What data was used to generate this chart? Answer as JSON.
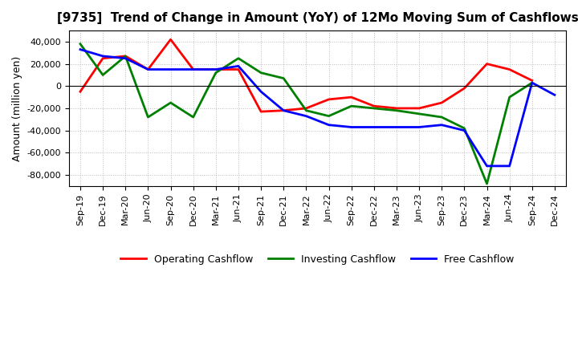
{
  "title": "[9735]  Trend of Change in Amount (YoY) of 12Mo Moving Sum of Cashflows",
  "ylabel": "Amount (million yen)",
  "x_labels": [
    "Sep-19",
    "Dec-19",
    "Mar-20",
    "Jun-20",
    "Sep-20",
    "Dec-20",
    "Mar-21",
    "Jun-21",
    "Sep-21",
    "Dec-21",
    "Mar-22",
    "Jun-22",
    "Sep-22",
    "Dec-22",
    "Mar-23",
    "Jun-23",
    "Sep-23",
    "Dec-23",
    "Mar-24",
    "Jun-24",
    "Sep-24",
    "Dec-24"
  ],
  "operating_cashflow": [
    -5000,
    25000,
    27000,
    15000,
    42000,
    15000,
    15000,
    15000,
    -23000,
    -22000,
    -20000,
    -12000,
    -10000,
    -18000,
    -20000,
    -20000,
    -15000,
    -2000,
    20000,
    15000,
    5000,
    null
  ],
  "investing_cashflow": [
    38000,
    10000,
    27000,
    -28000,
    -15000,
    -28000,
    12000,
    25000,
    12000,
    7000,
    -22000,
    -27000,
    -18000,
    -20000,
    -22000,
    -25000,
    -28000,
    -38000,
    -88000,
    -10000,
    3000,
    null
  ],
  "free_cashflow": [
    33000,
    27000,
    25000,
    15000,
    15000,
    15000,
    15000,
    18000,
    -5000,
    -22000,
    -27000,
    -35000,
    -37000,
    -37000,
    -37000,
    -37000,
    -35000,
    -40000,
    -72000,
    -72000,
    3000,
    -8000
  ],
  "ylim": [
    -90000,
    50000
  ],
  "yticks": [
    -80000,
    -60000,
    -40000,
    -20000,
    0,
    20000,
    40000
  ],
  "operating_color": "#FF0000",
  "investing_color": "#008000",
  "free_color": "#0000FF",
  "background_color": "#FFFFFF",
  "grid_color": "#BBBBBB",
  "linewidth": 2.0,
  "title_fontsize": 11,
  "axis_fontsize": 9,
  "tick_fontsize": 8
}
